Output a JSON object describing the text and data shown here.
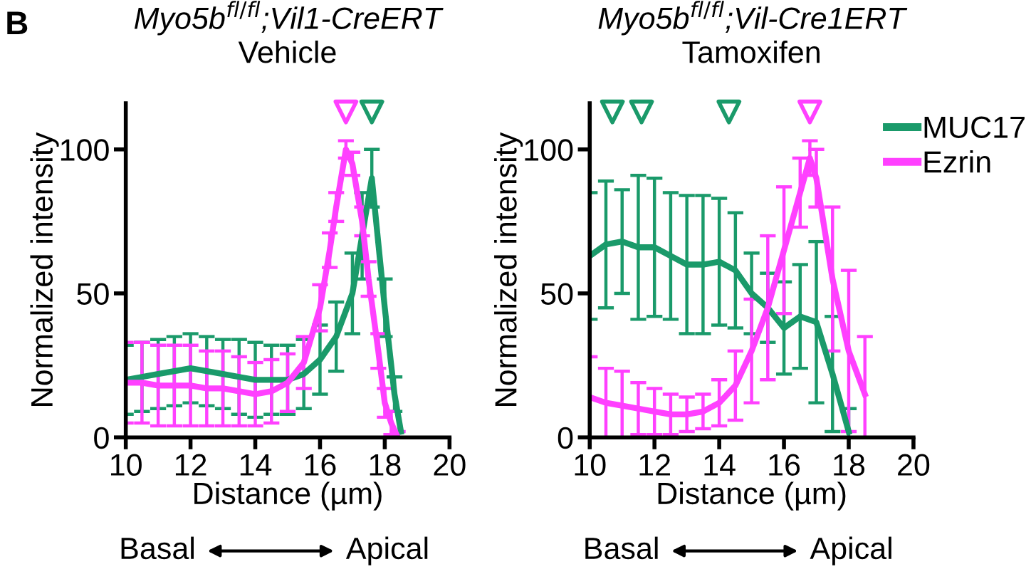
{
  "chart_data": [
    {
      "type": "line",
      "title": "Myo5b$^{fl/fl}$;Vil1-CreERT",
      "subtitle": "Vehicle",
      "xlabel": "Distance (µm)",
      "ylabel": "Normalized intensity",
      "xlim": [
        10,
        20
      ],
      "ylim": [
        0,
        116
      ],
      "xticks": [
        10,
        12,
        14,
        16,
        18,
        20
      ],
      "yticks": [
        0,
        50,
        100
      ],
      "grid": false,
      "legend": false,
      "marker": "none",
      "line_style": "solid",
      "annotations": [
        "B",
        "Basal",
        "Apical"
      ],
      "series": [
        {
          "color": "#1a9a6a",
          "x": [
            10,
            10.5,
            11,
            11.5,
            12,
            12.5,
            13,
            13.5,
            14,
            14.5,
            15,
            15.5,
            16,
            16.5,
            17,
            17.3,
            17.6,
            18,
            18.3,
            18.5
          ],
          "values": [
            20,
            21,
            22,
            23,
            24,
            23,
            22,
            21,
            20,
            20,
            20,
            22,
            27,
            35,
            50,
            70,
            90,
            45,
            15,
            2
          ],
          "errors": [
            12,
            12,
            12,
            12,
            12,
            12,
            12,
            13,
            13,
            12,
            12,
            12,
            12,
            12,
            14,
            15,
            10,
            10,
            6,
            null
          ]
        },
        {
          "color": "#ff40ff",
          "x": [
            10,
            10.5,
            11,
            11.5,
            12,
            12.5,
            13,
            13.5,
            14,
            14.5,
            15,
            15.5,
            16,
            16.3,
            16.5,
            16.8,
            17,
            17.3,
            17.5,
            17.8,
            18,
            18.2,
            18.4
          ],
          "values": [
            19,
            19,
            18,
            18,
            18,
            17,
            17,
            16,
            15,
            16,
            19,
            26,
            45,
            65,
            80,
            100,
            95,
            75,
            55,
            30,
            12,
            5,
            0
          ],
          "errors": [
            14,
            14,
            14,
            14,
            14,
            13,
            13,
            12,
            11,
            11,
            10,
            9,
            8,
            6,
            5,
            3,
            4,
            5,
            6,
            6,
            5,
            4,
            2
          ]
        },
        {
          "type": "scatter",
          "marker": "triangle",
          "color": "#ff40ff",
          "x": [
            16.8
          ],
          "values": [
            113
          ]
        },
        {
          "type": "scatter",
          "marker": "triangle",
          "color": "#1a9a6a",
          "x": [
            17.6
          ],
          "values": [
            113
          ]
        }
      ]
    },
    {
      "type": "line",
      "title": "Myo5b$^{fl/fl}$;Vil-Cre1ERT",
      "subtitle": "Tamoxifen",
      "xlabel": "Distance (µm)",
      "ylabel": "Normalized intensity",
      "xlim": [
        10,
        20
      ],
      "ylim": [
        0,
        116
      ],
      "xticks": [
        10,
        12,
        14,
        16,
        18,
        20
      ],
      "yticks": [
        0,
        50,
        100
      ],
      "grid": false,
      "legend": "top right",
      "marker": "none",
      "line_style": "solid",
      "annotations": [
        "Basal",
        "Apical"
      ],
      "series": [
        {
          "name": "MUC17",
          "color": "#1a9a6a",
          "x": [
            10,
            10.5,
            11,
            11.5,
            12,
            12.5,
            13,
            13.5,
            14,
            14.5,
            15,
            15.5,
            16,
            16.5,
            17,
            17.5,
            18
          ],
          "values": [
            63,
            67,
            68,
            66,
            66,
            63,
            60,
            60,
            61,
            58,
            50,
            45,
            38,
            42,
            40,
            22,
            2
          ],
          "errors": [
            22,
            22,
            18,
            25,
            24,
            22,
            24,
            24,
            22,
            20,
            14,
            12,
            16,
            18,
            28,
            20,
            8
          ]
        },
        {
          "name": "Ezrin",
          "color": "#ff40ff",
          "x": [
            10,
            10.5,
            11,
            11.5,
            12,
            12.5,
            13,
            13.5,
            14,
            14.5,
            15,
            15.5,
            16,
            16.5,
            16.8,
            17,
            17.5,
            18,
            18.5
          ],
          "values": [
            14,
            12,
            11,
            10,
            9,
            8,
            8,
            9,
            12,
            18,
            30,
            45,
            65,
            85,
            97,
            90,
            55,
            30,
            15
          ],
          "errors": [
            14,
            12,
            12,
            9,
            8,
            7,
            6,
            6,
            8,
            12,
            18,
            25,
            22,
            12,
            6,
            10,
            25,
            28,
            20
          ]
        },
        {
          "type": "scatter",
          "marker": "triangle",
          "color": "#1a9a6a",
          "x": [
            10.7,
            11.6,
            14.3
          ],
          "values": [
            113,
            113,
            113
          ]
        },
        {
          "type": "scatter",
          "marker": "triangle",
          "color": "#ff40ff",
          "x": [
            16.8
          ],
          "values": [
            113
          ]
        }
      ]
    }
  ]
}
